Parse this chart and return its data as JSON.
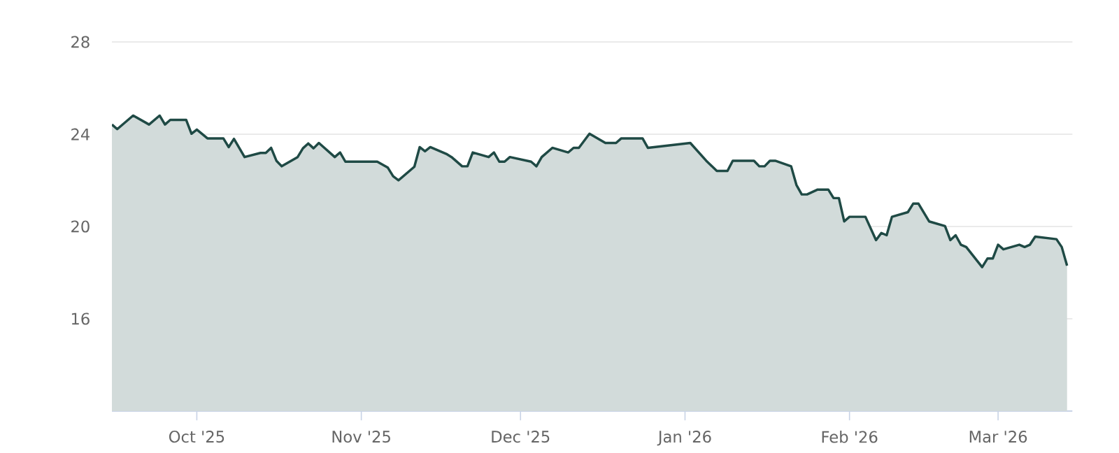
{
  "chart_data": {
    "type": "area",
    "x": [
      "2025-09-15",
      "2025-09-16",
      "2025-09-19",
      "2025-09-22",
      "2025-09-24",
      "2025-09-25",
      "2025-09-26",
      "2025-09-29",
      "2025-09-30",
      "2025-10-01",
      "2025-10-03",
      "2025-10-06",
      "2025-10-07",
      "2025-10-08",
      "2025-10-10",
      "2025-10-13",
      "2025-10-14",
      "2025-10-15",
      "2025-10-16",
      "2025-10-17",
      "2025-10-20",
      "2025-10-21",
      "2025-10-22",
      "2025-10-23",
      "2025-10-24",
      "2025-10-27",
      "2025-10-28",
      "2025-10-29",
      "2025-11-04",
      "2025-11-06",
      "2025-11-07",
      "2025-11-08",
      "2025-11-11",
      "2025-11-12",
      "2025-11-13",
      "2025-11-14",
      "2025-11-17",
      "2025-11-18",
      "2025-11-20",
      "2025-11-21",
      "2025-11-22",
      "2025-11-25",
      "2025-11-26",
      "2025-11-27",
      "2025-11-28",
      "2025-11-29",
      "2025-12-03",
      "2025-12-04",
      "2025-12-05",
      "2025-12-07",
      "2025-12-10",
      "2025-12-11",
      "2025-12-12",
      "2025-12-14",
      "2025-12-17",
      "2025-12-19",
      "2025-12-20",
      "2025-12-24",
      "2025-12-25",
      "2026-01-02",
      "2026-01-05",
      "2026-01-07",
      "2026-01-09",
      "2026-01-10",
      "2026-01-14",
      "2026-01-15",
      "2026-01-16",
      "2026-01-17",
      "2026-01-18",
      "2026-01-21",
      "2026-01-22",
      "2026-01-23",
      "2026-01-24",
      "2026-01-26",
      "2026-01-28",
      "2026-01-29",
      "2026-01-30",
      "2026-01-31",
      "2026-02-01",
      "2026-02-04",
      "2026-02-06",
      "2026-02-07",
      "2026-02-08",
      "2026-02-09",
      "2026-02-12",
      "2026-02-13",
      "2026-02-14",
      "2026-02-16",
      "2026-02-19",
      "2026-02-20",
      "2026-02-21",
      "2026-02-22",
      "2026-02-23",
      "2026-02-26",
      "2026-02-27",
      "2026-02-28",
      "2026-03-01",
      "2026-03-02",
      "2026-03-05",
      "2026-03-06",
      "2026-03-07",
      "2026-03-08",
      "2026-03-12",
      "2026-03-13",
      "2026-03-14"
    ],
    "series": [
      {
        "color": "#1f4a45",
        "values": [
          24.42,
          24.22,
          24.81,
          24.42,
          24.81,
          24.42,
          24.62,
          24.62,
          24.02,
          24.2,
          23.82,
          23.82,
          23.44,
          23.8,
          23.01,
          23.19,
          23.19,
          23.41,
          22.85,
          22.61,
          23.01,
          23.39,
          23.6,
          23.39,
          23.62,
          23.01,
          23.21,
          22.81,
          22.81,
          22.55,
          22.18,
          22.0,
          22.59,
          23.44,
          23.26,
          23.44,
          23.15,
          23.01,
          22.61,
          22.61,
          23.21,
          23.01,
          23.21,
          22.81,
          22.81,
          23.01,
          22.81,
          22.61,
          23.01,
          23.41,
          23.21,
          23.41,
          23.41,
          24.02,
          23.62,
          23.62,
          23.82,
          23.82,
          23.41,
          23.62,
          22.85,
          22.41,
          22.41,
          22.85,
          22.85,
          22.61,
          22.61,
          22.85,
          22.85,
          22.61,
          21.8,
          21.39,
          21.39,
          21.6,
          21.6,
          21.23,
          21.23,
          20.22,
          20.42,
          20.42,
          19.41,
          19.72,
          19.62,
          20.42,
          20.62,
          20.99,
          20.99,
          20.22,
          20.02,
          19.41,
          19.62,
          19.21,
          19.11,
          18.24,
          18.61,
          18.61,
          19.21,
          19.01,
          19.21,
          19.11,
          19.21,
          19.56,
          19.45,
          19.11,
          18.3
        ]
      }
    ],
    "xlim": [
      "2025-09-15",
      "2026-03-15"
    ],
    "xticks": [
      {
        "value": "2025-10-01",
        "label": "Oct '25"
      },
      {
        "value": "2025-11-01",
        "label": "Nov '25"
      },
      {
        "value": "2025-12-01",
        "label": "Dec '25"
      },
      {
        "value": "2026-01-01",
        "label": "Jan '26"
      },
      {
        "value": "2026-02-01",
        "label": "Feb '26"
      },
      {
        "value": "2026-03-01",
        "label": "Mar '26"
      }
    ],
    "ylim": [
      12,
      28
    ],
    "yticks": [
      16,
      20,
      24,
      28
    ],
    "grid": "y"
  }
}
